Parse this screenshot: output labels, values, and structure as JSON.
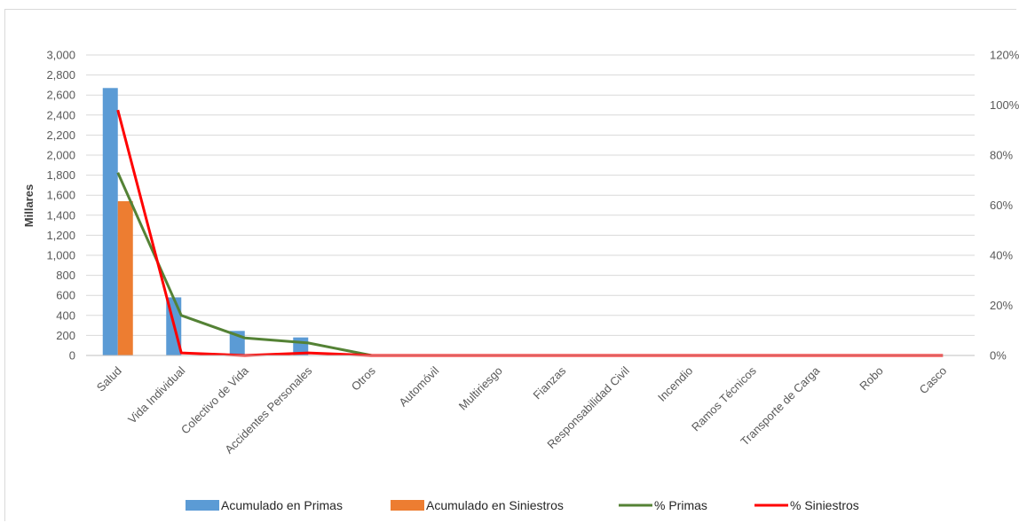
{
  "chart_data": {
    "type": "bar",
    "title": "",
    "ylabel": "Millares",
    "xlabel": "",
    "categories": [
      "Salud",
      "Vida Individual",
      "Colectivo de Vida",
      "Accidentes Personales",
      "Otros",
      "Automóvil",
      "Multiriesgo",
      "Fianzas",
      "Responsabilidad Civil",
      "Incendio",
      "Ramos Técnicos",
      "Transporte de Carga",
      "Robo",
      "Casco"
    ],
    "ylim": [
      0,
      3000
    ],
    "y_ticks": [
      "0",
      "200",
      "400",
      "600",
      "800",
      "1,000",
      "1,200",
      "1,400",
      "1,600",
      "1,800",
      "2,000",
      "2,200",
      "2,400",
      "2,600",
      "2,800",
      "3,000"
    ],
    "y2lim": [
      0,
      1.2
    ],
    "y2_ticks": [
      "0%",
      "20%",
      "40%",
      "60%",
      "80%",
      "100%",
      "120%"
    ],
    "grid": true,
    "legend_position": "bottom",
    "series": [
      {
        "name": "Acumulado en Primas",
        "kind": "bar",
        "axis": "left",
        "color": "#5b9bd5",
        "values": [
          2670,
          580,
          245,
          180,
          0,
          0,
          0,
          0,
          0,
          0,
          0,
          0,
          0,
          0
        ]
      },
      {
        "name": "Acumulado en Siniestros",
        "kind": "bar",
        "axis": "left",
        "color": "#ed7d31",
        "values": [
          1540,
          0,
          0,
          0,
          0,
          0,
          0,
          0,
          0,
          0,
          0,
          0,
          0,
          0
        ]
      },
      {
        "name": "% Primas",
        "kind": "line",
        "axis": "right",
        "color": "#548235",
        "values": [
          0.73,
          0.16,
          0.07,
          0.05,
          0,
          0,
          0,
          0,
          0,
          0,
          0,
          0,
          0,
          0
        ]
      },
      {
        "name": "% Siniestros",
        "kind": "line",
        "axis": "right",
        "color": "#ff0000",
        "values": [
          0.98,
          0.01,
          0,
          0.01,
          0,
          0,
          0,
          0,
          0,
          0,
          0,
          0,
          0,
          0
        ]
      }
    ]
  }
}
